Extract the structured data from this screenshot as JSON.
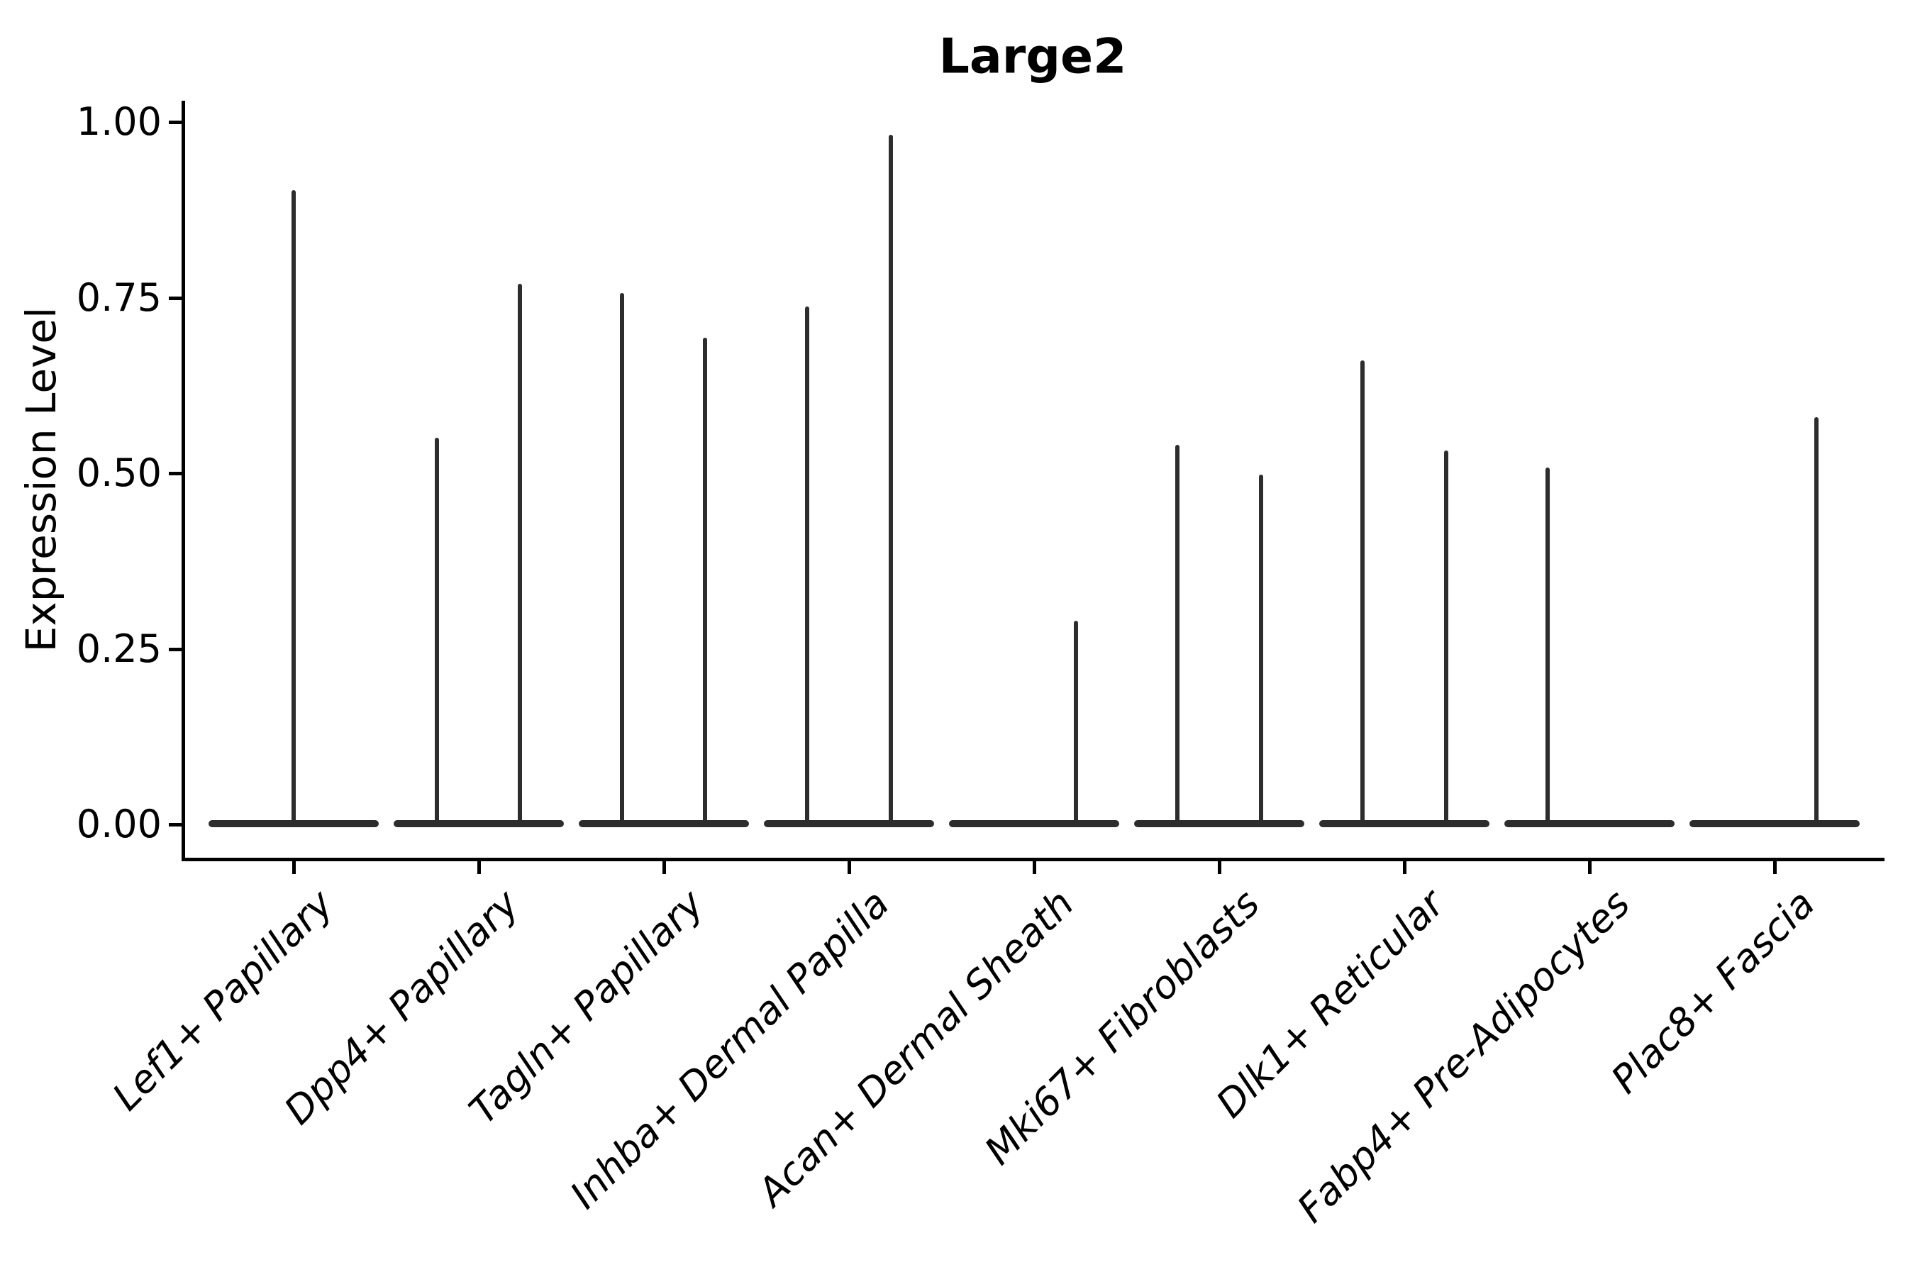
{
  "title": "Large2",
  "y_axis": {
    "label": "Expression Level",
    "ticks": [
      {
        "text": "1.00",
        "value": 1.0
      },
      {
        "text": "0.75",
        "value": 0.75
      },
      {
        "text": "0.50",
        "value": 0.5
      },
      {
        "text": "0.25",
        "value": 0.25
      },
      {
        "text": "0.00",
        "value": 0.0
      }
    ]
  },
  "x_axis": {
    "categories": [
      "Lef1+ Papillary",
      "Dpp4+ Papillary",
      "Tagln+ Papillary",
      "Inhba+ Dermal Papilla",
      "Acan+ Dermal Sheath",
      "Mki67+ Fibroblasts",
      "Dlk1+ Reticular",
      "Fabp4+ Pre-Adipocytes",
      "Plac8+ Fascia"
    ]
  },
  "colors": {
    "violin": "#2d2d2d",
    "axis": "#000000",
    "text": "#000000",
    "background": "#ffffff"
  },
  "chart_data": {
    "type": "violin",
    "title": "Large2",
    "xlabel": "",
    "ylabel": "Expression Level",
    "ylim": [
      -0.05,
      1.03
    ],
    "grid": false,
    "legend": false,
    "x_tick_rotation_deg": 45,
    "categories": [
      "Lef1+ Papillary",
      "Dpp4+ Papillary",
      "Tagln+ Papillary",
      "Inhba+ Dermal Papilla",
      "Acan+ Dermal Sheath",
      "Mki67+ Fibroblasts",
      "Dlk1+ Reticular",
      "Fabp4+ Pre-Adipocytes",
      "Plac8+ Fascia"
    ],
    "description": "Violin plot of expression level per cluster; each violin is flat at 0 (most cells non-expressing) with thin density spikes rising to the maximum expression of rare expressing cells.",
    "violin_halfwidth_units": 0.46,
    "series": [
      {
        "name": "Lef1+ Papillary",
        "spikes": [
          {
            "offset_units": 0.0,
            "max": 0.903
          }
        ]
      },
      {
        "name": "Dpp4+ Papillary",
        "spikes": [
          {
            "offset_units": -0.225,
            "max": 0.551
          },
          {
            "offset_units": 0.225,
            "max": 0.77
          }
        ]
      },
      {
        "name": "Tagln+ Papillary",
        "spikes": [
          {
            "offset_units": -0.225,
            "max": 0.757
          },
          {
            "offset_units": 0.225,
            "max": 0.693
          }
        ]
      },
      {
        "name": "Inhba+ Dermal Papilla",
        "spikes": [
          {
            "offset_units": -0.225,
            "max": 0.737
          },
          {
            "offset_units": 0.225,
            "max": 0.982
          }
        ]
      },
      {
        "name": "Acan+ Dermal Sheath",
        "spikes": [
          {
            "offset_units": 0.225,
            "max": 0.29
          }
        ]
      },
      {
        "name": "Mki67+ Fibroblasts",
        "spikes": [
          {
            "offset_units": -0.225,
            "max": 0.54
          },
          {
            "offset_units": 0.225,
            "max": 0.498
          }
        ]
      },
      {
        "name": "Dlk1+ Reticular",
        "spikes": [
          {
            "offset_units": -0.225,
            "max": 0.661
          },
          {
            "offset_units": 0.225,
            "max": 0.532
          }
        ]
      },
      {
        "name": "Fabp4+ Pre-Adipocytes",
        "spikes": [
          {
            "offset_units": -0.225,
            "max": 0.508
          }
        ]
      },
      {
        "name": "Plac8+ Fascia",
        "spikes": [
          {
            "offset_units": 0.225,
            "max": 0.58
          }
        ]
      }
    ]
  }
}
